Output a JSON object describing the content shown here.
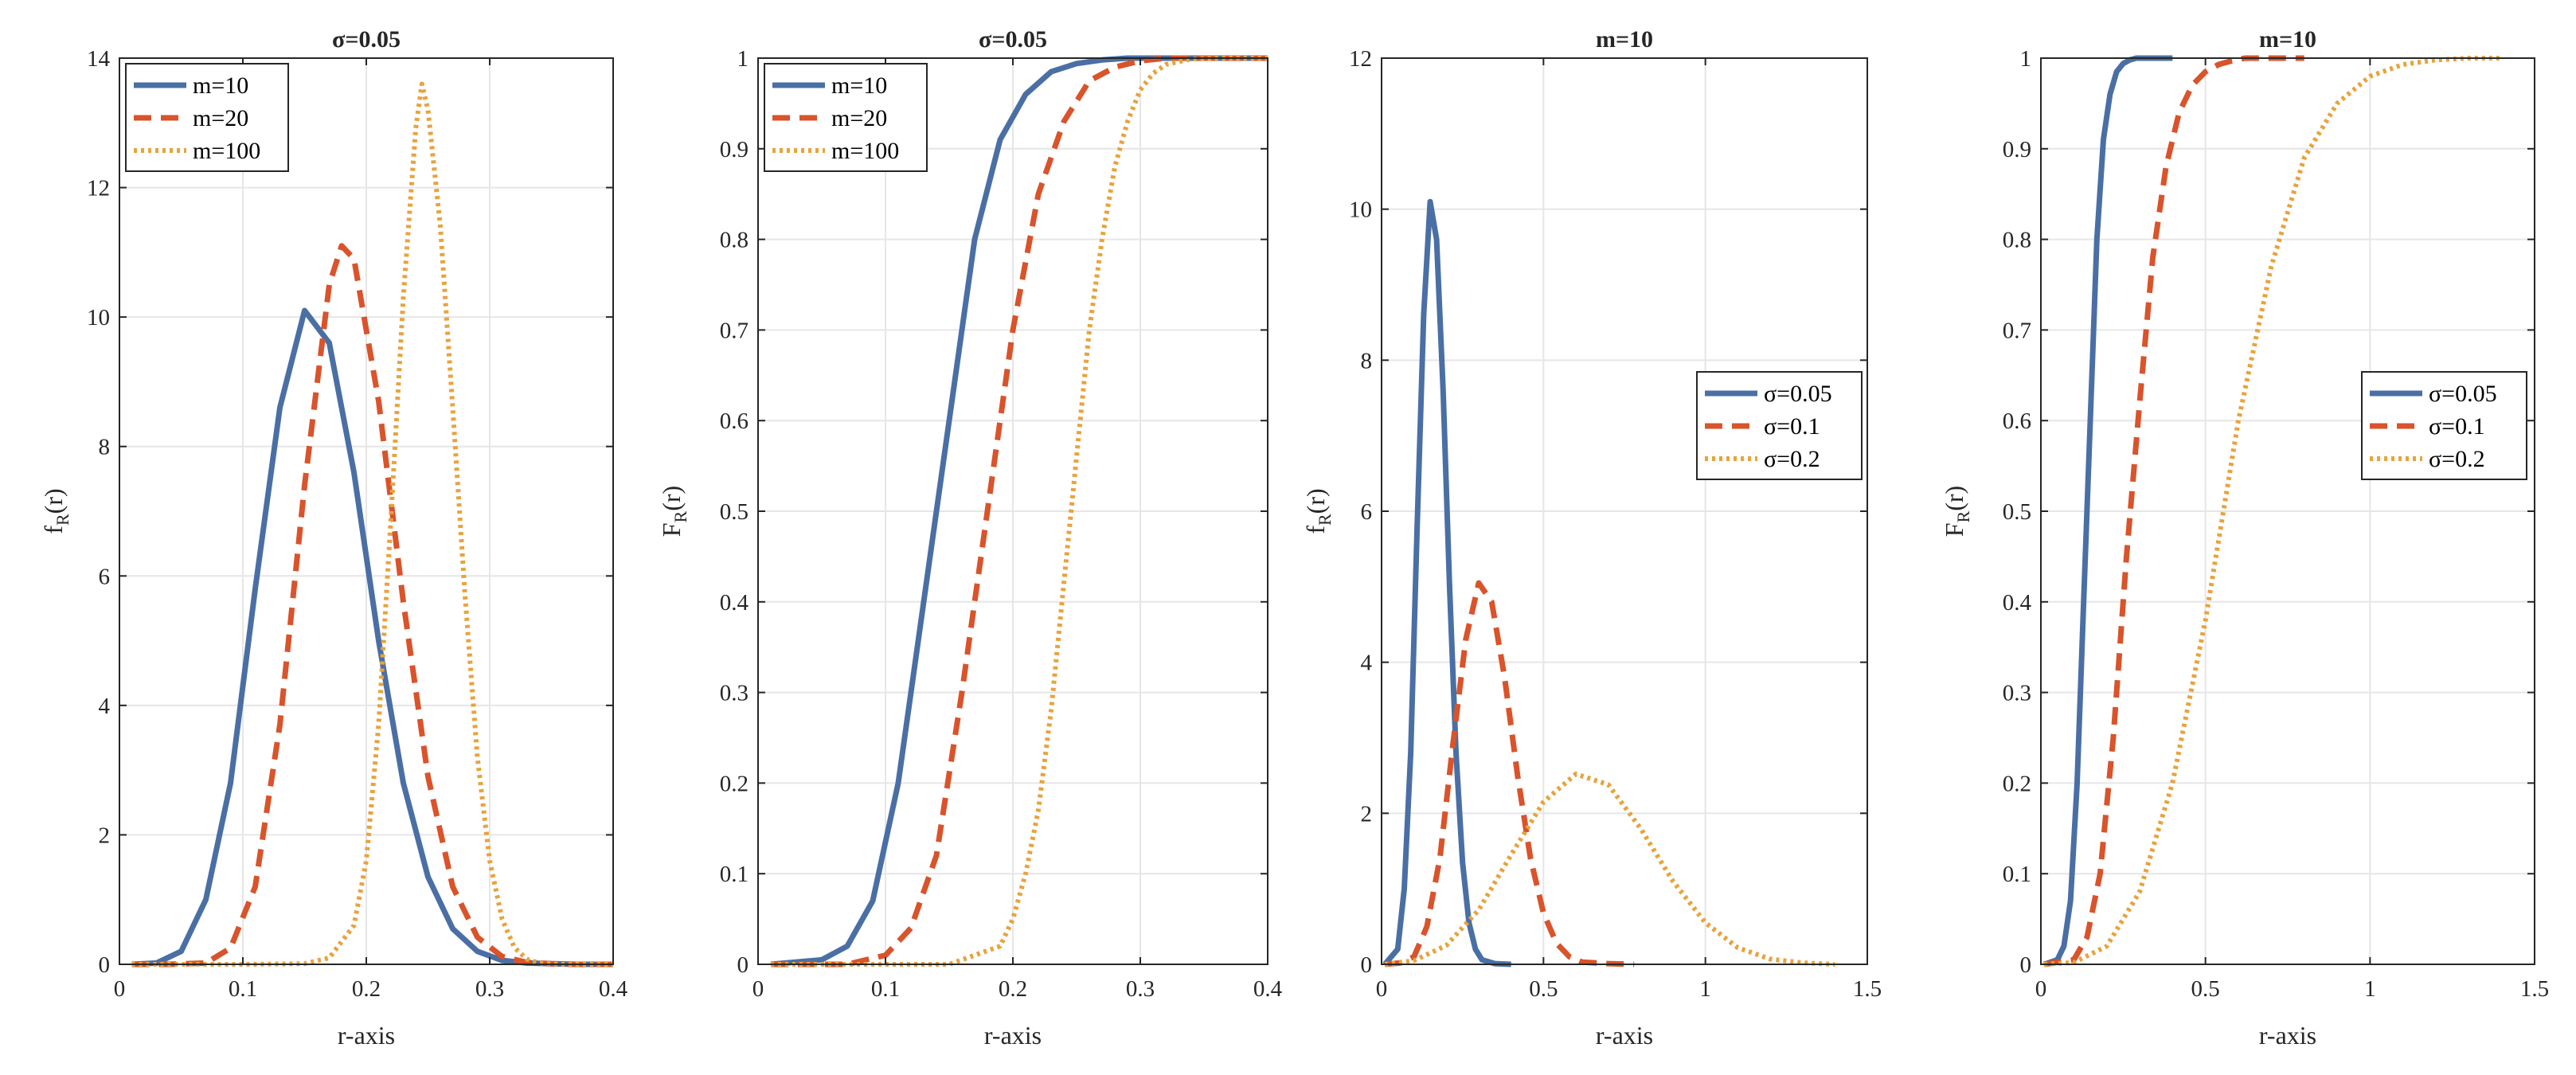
{
  "chart_data": [
    {
      "type": "line",
      "title": "σ=0.05",
      "xlabel": "r-axis",
      "ylabel": "fR(r)",
      "ylabel_main": "f",
      "ylabel_sub": "R",
      "ylabel_tail": "(r)",
      "xlim": [
        0,
        0.4
      ],
      "ylim": [
        0,
        14
      ],
      "xticks": [
        0,
        0.1,
        0.2,
        0.3,
        0.4
      ],
      "xtick_labels": [
        "0",
        "0.1",
        "0.2",
        "0.3",
        "0.4"
      ],
      "yticks": [
        0,
        2,
        4,
        6,
        8,
        10,
        12,
        14
      ],
      "ytick_labels": [
        "0",
        "2",
        "4",
        "6",
        "8",
        "10",
        "12",
        "14"
      ],
      "grid": true,
      "legend_position": "top-left",
      "series": [
        {
          "name": "m=10",
          "color": "#4a6fa5",
          "style": "solid",
          "x": [
            0.01,
            0.03,
            0.05,
            0.07,
            0.09,
            0.11,
            0.13,
            0.15,
            0.17,
            0.19,
            0.21,
            0.23,
            0.25,
            0.27,
            0.29,
            0.31,
            0.33,
            0.35,
            0.37,
            0.4
          ],
          "y": [
            0,
            0.02,
            0.2,
            1.0,
            2.8,
            5.8,
            8.6,
            10.1,
            9.6,
            7.6,
            5.0,
            2.8,
            1.35,
            0.55,
            0.2,
            0.06,
            0.02,
            0.01,
            0,
            0
          ]
        },
        {
          "name": "m=20",
          "color": "#d9532b",
          "style": "dashed",
          "x": [
            0.01,
            0.04,
            0.07,
            0.09,
            0.11,
            0.13,
            0.15,
            0.17,
            0.18,
            0.19,
            0.21,
            0.23,
            0.25,
            0.27,
            0.29,
            0.31,
            0.33,
            0.35,
            0.37,
            0.4
          ],
          "y": [
            0,
            0,
            0.02,
            0.25,
            1.2,
            3.7,
            7.4,
            10.5,
            11.1,
            10.9,
            8.7,
            5.6,
            2.9,
            1.2,
            0.42,
            0.12,
            0.03,
            0.01,
            0,
            0
          ]
        },
        {
          "name": "m=100",
          "color": "#e8a33c",
          "style": "dotted",
          "x": [
            0.01,
            0.1,
            0.15,
            0.17,
            0.19,
            0.2,
            0.21,
            0.22,
            0.23,
            0.24,
            0.245,
            0.25,
            0.26,
            0.27,
            0.28,
            0.29,
            0.3,
            0.31,
            0.32,
            0.33,
            0.34,
            0.36,
            0.4
          ],
          "y": [
            0,
            0,
            0.01,
            0.1,
            0.6,
            1.6,
            3.7,
            6.9,
            10.3,
            12.9,
            13.6,
            13.2,
            11.4,
            8.6,
            5.7,
            3.2,
            1.6,
            0.7,
            0.26,
            0.08,
            0.02,
            0,
            0
          ]
        }
      ]
    },
    {
      "type": "line",
      "title": "σ=0.05",
      "xlabel": "r-axis",
      "ylabel": "FR(r)",
      "ylabel_main": "F",
      "ylabel_sub": "R",
      "ylabel_tail": "(r)",
      "xlim": [
        0,
        0.4
      ],
      "ylim": [
        0,
        1
      ],
      "xticks": [
        0,
        0.1,
        0.2,
        0.3,
        0.4
      ],
      "xtick_labels": [
        "0",
        "0.1",
        "0.2",
        "0.3",
        "0.4"
      ],
      "yticks": [
        0,
        0.1,
        0.2,
        0.3,
        0.4,
        0.5,
        0.6,
        0.7,
        0.8,
        0.9,
        1
      ],
      "ytick_labels": [
        "0",
        "0.1",
        "0.2",
        "0.3",
        "0.4",
        "0.5",
        "0.6",
        "0.7",
        "0.8",
        "0.9",
        "1"
      ],
      "grid": true,
      "legend_position": "top-left",
      "series": [
        {
          "name": "m=10",
          "color": "#4a6fa5",
          "style": "solid",
          "x": [
            0.01,
            0.05,
            0.07,
            0.09,
            0.11,
            0.13,
            0.15,
            0.17,
            0.19,
            0.21,
            0.23,
            0.25,
            0.27,
            0.29,
            0.31,
            0.33,
            0.4
          ],
          "y": [
            0,
            0.005,
            0.02,
            0.07,
            0.2,
            0.4,
            0.6,
            0.8,
            0.91,
            0.96,
            0.985,
            0.994,
            0.998,
            1.0,
            1.0,
            1.0,
            1.0
          ]
        },
        {
          "name": "m=20",
          "color": "#d9532b",
          "style": "dashed",
          "x": [
            0.01,
            0.07,
            0.1,
            0.12,
            0.14,
            0.16,
            0.18,
            0.2,
            0.22,
            0.24,
            0.26,
            0.28,
            0.3,
            0.32,
            0.34,
            0.4
          ],
          "y": [
            0,
            0,
            0.01,
            0.04,
            0.12,
            0.3,
            0.5,
            0.7,
            0.85,
            0.93,
            0.975,
            0.99,
            0.997,
            1.0,
            1.0,
            1.0
          ]
        },
        {
          "name": "m=100",
          "color": "#e8a33c",
          "style": "dotted",
          "x": [
            0.01,
            0.15,
            0.19,
            0.2,
            0.21,
            0.22,
            0.23,
            0.24,
            0.25,
            0.26,
            0.27,
            0.28,
            0.29,
            0.3,
            0.31,
            0.32,
            0.34,
            0.36,
            0.4
          ],
          "y": [
            0,
            0,
            0.02,
            0.05,
            0.1,
            0.17,
            0.28,
            0.42,
            0.56,
            0.7,
            0.8,
            0.88,
            0.93,
            0.965,
            0.983,
            0.993,
            0.999,
            1.0,
            1.0
          ]
        }
      ]
    },
    {
      "type": "line",
      "title": "m=10",
      "xlabel": "r-axis",
      "ylabel": "fR(r)",
      "ylabel_main": "f",
      "ylabel_sub": "R",
      "ylabel_tail": "(r)",
      "xlim": [
        0,
        1.5
      ],
      "ylim": [
        0,
        12
      ],
      "xticks": [
        0,
        0.5,
        1,
        1.5
      ],
      "xtick_labels": [
        "0",
        "0.5",
        "1",
        "1.5"
      ],
      "yticks": [
        0,
        2,
        4,
        6,
        8,
        10,
        12
      ],
      "ytick_labels": [
        "0",
        "2",
        "4",
        "6",
        "8",
        "10",
        "12"
      ],
      "grid": true,
      "legend_position": "middle-right",
      "series": [
        {
          "name": "σ=0.05",
          "color": "#4a6fa5",
          "style": "solid",
          "x": [
            0.01,
            0.05,
            0.07,
            0.09,
            0.11,
            0.13,
            0.15,
            0.17,
            0.19,
            0.21,
            0.23,
            0.25,
            0.27,
            0.29,
            0.31,
            0.35,
            0.4
          ],
          "y": [
            0,
            0.2,
            1.0,
            2.8,
            5.8,
            8.6,
            10.1,
            9.6,
            7.6,
            5.0,
            2.8,
            1.35,
            0.55,
            0.2,
            0.06,
            0.01,
            0
          ]
        },
        {
          "name": "σ=0.1",
          "color": "#d9532b",
          "style": "dashed",
          "x": [
            0.01,
            0.06,
            0.1,
            0.14,
            0.18,
            0.22,
            0.26,
            0.3,
            0.34,
            0.38,
            0.42,
            0.46,
            0.5,
            0.54,
            0.58,
            0.62,
            0.7,
            0.78
          ],
          "y": [
            0,
            0.02,
            0.1,
            0.5,
            1.4,
            2.9,
            4.3,
            5.05,
            4.8,
            3.8,
            2.5,
            1.4,
            0.68,
            0.28,
            0.1,
            0.03,
            0.01,
            0
          ]
        },
        {
          "name": "σ=0.2",
          "color": "#e8a33c",
          "style": "dotted",
          "x": [
            0.01,
            0.1,
            0.2,
            0.3,
            0.4,
            0.5,
            0.6,
            0.7,
            0.8,
            0.9,
            1.0,
            1.1,
            1.2,
            1.3,
            1.4
          ],
          "y": [
            0,
            0.05,
            0.25,
            0.72,
            1.45,
            2.15,
            2.52,
            2.38,
            1.8,
            1.1,
            0.55,
            0.22,
            0.07,
            0.02,
            0
          ]
        }
      ]
    },
    {
      "type": "line",
      "title": "m=10",
      "xlabel": "r-axis",
      "ylabel": "FR(r)",
      "ylabel_main": "F",
      "ylabel_sub": "R",
      "ylabel_tail": "(r)",
      "xlim": [
        0,
        1.5
      ],
      "ylim": [
        0,
        1
      ],
      "xticks": [
        0,
        0.5,
        1,
        1.5
      ],
      "xtick_labels": [
        "0",
        "0.5",
        "1",
        "1.5"
      ],
      "yticks": [
        0,
        0.1,
        0.2,
        0.3,
        0.4,
        0.5,
        0.6,
        0.7,
        0.8,
        0.9,
        1
      ],
      "ytick_labels": [
        "0",
        "0.1",
        "0.2",
        "0.3",
        "0.4",
        "0.5",
        "0.6",
        "0.7",
        "0.8",
        "0.9",
        "1"
      ],
      "grid": true,
      "legend_position": "middle-right",
      "series": [
        {
          "name": "σ=0.05",
          "color": "#4a6fa5",
          "style": "solid",
          "x": [
            0.01,
            0.05,
            0.07,
            0.09,
            0.11,
            0.13,
            0.15,
            0.17,
            0.19,
            0.21,
            0.23,
            0.25,
            0.27,
            0.29,
            0.31,
            0.4
          ],
          "y": [
            0,
            0.005,
            0.02,
            0.07,
            0.2,
            0.4,
            0.6,
            0.8,
            0.91,
            0.96,
            0.985,
            0.994,
            0.998,
            1.0,
            1.0,
            1.0
          ]
        },
        {
          "name": "σ=0.1",
          "color": "#d9532b",
          "style": "dashed",
          "x": [
            0.01,
            0.1,
            0.14,
            0.18,
            0.22,
            0.26,
            0.3,
            0.34,
            0.38,
            0.42,
            0.46,
            0.5,
            0.54,
            0.58,
            0.62,
            0.7,
            0.8
          ],
          "y": [
            0,
            0.005,
            0.03,
            0.1,
            0.25,
            0.45,
            0.62,
            0.78,
            0.88,
            0.94,
            0.97,
            0.985,
            0.993,
            0.997,
            1.0,
            1.0,
            1.0
          ]
        },
        {
          "name": "σ=0.2",
          "color": "#e8a33c",
          "style": "dotted",
          "x": [
            0.01,
            0.1,
            0.2,
            0.3,
            0.4,
            0.5,
            0.6,
            0.7,
            0.8,
            0.9,
            1.0,
            1.1,
            1.2,
            1.3,
            1.4
          ],
          "y": [
            0,
            0.002,
            0.02,
            0.08,
            0.2,
            0.38,
            0.6,
            0.77,
            0.89,
            0.95,
            0.98,
            0.993,
            0.998,
            1.0,
            1.0
          ]
        }
      ]
    }
  ]
}
